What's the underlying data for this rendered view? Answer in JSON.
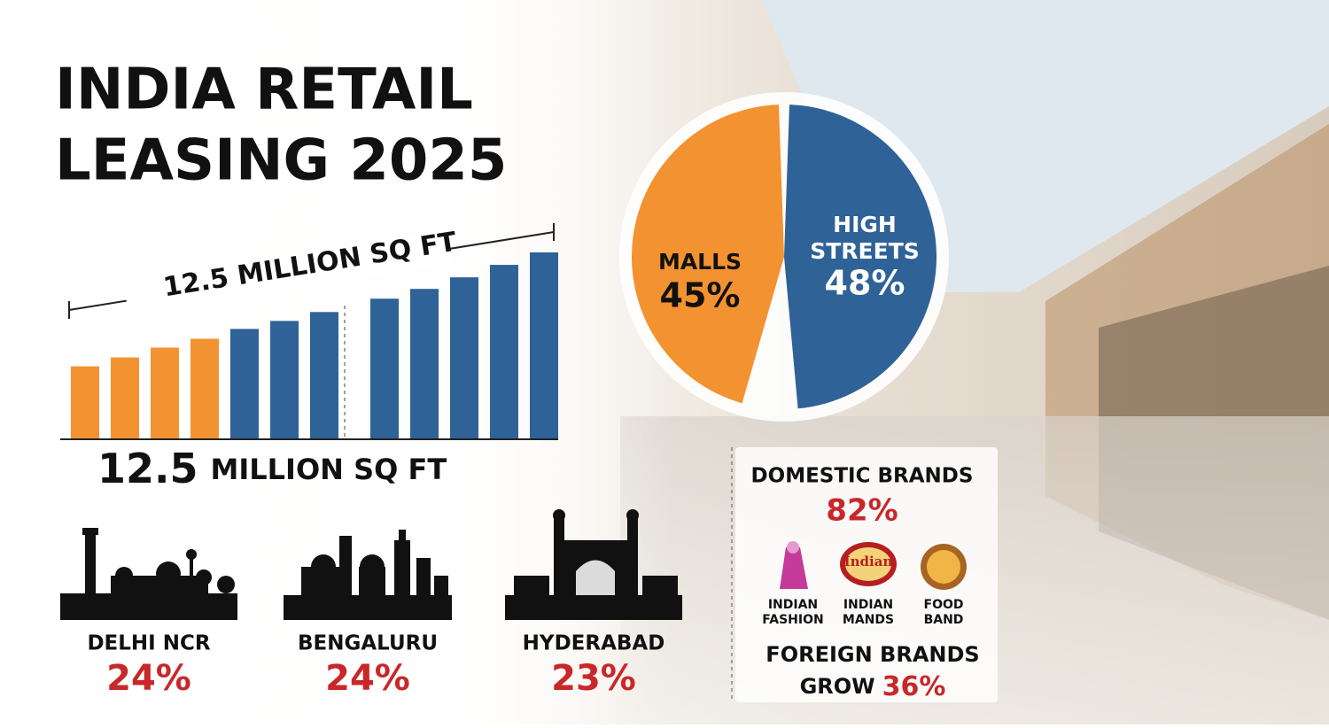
{
  "title": [
    "INDIA RETAIL",
    "LEASING 2025"
  ],
  "bar_chart": {
    "type": "bar",
    "banner": "12.5 MILLION SQ FT",
    "values": [
      81,
      91,
      102,
      112,
      123,
      132,
      142,
      157,
      168,
      181,
      195,
      209
    ],
    "colors": [
      "#f39230",
      "#f39230",
      "#f39230",
      "#f39230",
      "#2f6296",
      "#2f6296",
      "#2f6296",
      "#2f6296",
      "#2f6296",
      "#2f6296",
      "#2f6296",
      "#2f6296"
    ],
    "divider_after": 6
  },
  "total": {
    "number": "12.5",
    "unit": "MILLION SQ FT"
  },
  "pie": {
    "type": "pie",
    "slices": [
      {
        "name": "MALLS",
        "value": 45,
        "value_label": "45%",
        "color": "#f39230"
      },
      {
        "name": [
          "HIGH",
          "STREETS"
        ],
        "value": 48,
        "value_label": "48%",
        "color": "#2f6296"
      }
    ]
  },
  "cities": [
    {
      "name": "DELHI NCR",
      "value": 24,
      "value_label": "24%"
    },
    {
      "name": "BENGALURU",
      "value": 24,
      "value_label": "24%"
    },
    {
      "name": "HYDERABAD",
      "value": 23,
      "value_label": "23%"
    }
  ],
  "brands": {
    "domestic_title": "DOMESTIC BRANDS",
    "domestic_value": "82%",
    "badge": "Indian",
    "icons": [
      [
        "INDIAN",
        "FASHION"
      ],
      [
        "INDIAN",
        "MANDS"
      ],
      [
        "FOOD",
        "BAND"
      ]
    ],
    "foreign_title": "FOREIGN BRANDS",
    "foreign_prefix": "GROW",
    "foreign_value": "36%"
  }
}
